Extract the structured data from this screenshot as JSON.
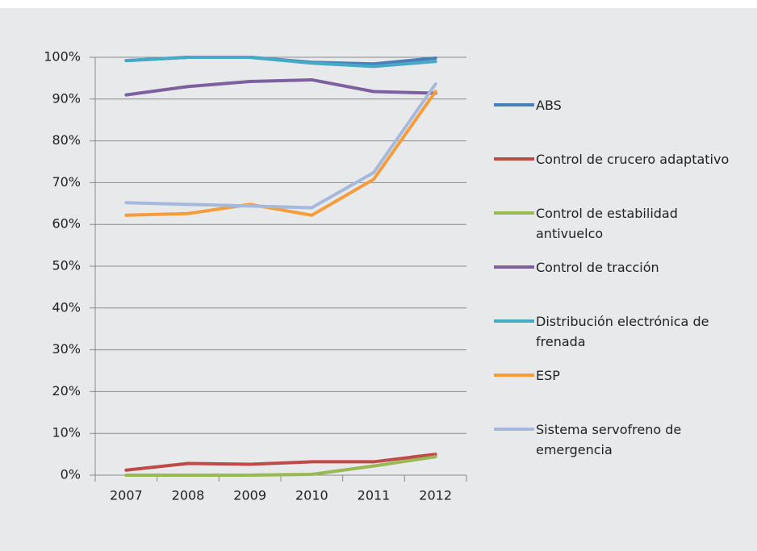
{
  "chart_data": {
    "type": "line",
    "categories": [
      "2007",
      "2008",
      "2009",
      "2010",
      "2011",
      "2012"
    ],
    "series": [
      {
        "name": "ABS",
        "color": "#4a7ebb",
        "values": [
          99.2,
          100,
          100,
          98.8,
          98.4,
          99.8
        ]
      },
      {
        "name": "Control de crucero adaptativo",
        "color": "#be4b48",
        "values": [
          1.2,
          2.8,
          2.6,
          3.2,
          3.2,
          5
        ]
      },
      {
        "name": "Control de estabilidad antivuelco",
        "color": "#98b954",
        "values": [
          0,
          0,
          0,
          0.2,
          2.2,
          4.4
        ]
      },
      {
        "name": "Control de tracción",
        "color": "#7d60a0",
        "values": [
          91,
          93,
          94.2,
          94.6,
          91.8,
          91.4
        ]
      },
      {
        "name": "Distribución electrónica de frenada",
        "color": "#46aac5",
        "values": [
          99.2,
          100,
          100,
          98.6,
          97.8,
          99
        ]
      },
      {
        "name": "ESP",
        "color": "#f59d3d",
        "values": [
          62.2,
          62.6,
          64.8,
          62.2,
          70.8,
          91.8
        ]
      },
      {
        "name": "Sistema servofreno de emergencia",
        "color": "#a5b9dd",
        "values": [
          65.2,
          64.8,
          64.4,
          64,
          72.4,
          93.6
        ]
      }
    ],
    "ylim": [
      0,
      100
    ],
    "yticks": [
      {
        "value": 0,
        "label": "0%"
      },
      {
        "value": 10,
        "label": "10%"
      },
      {
        "value": 20,
        "label": "20%"
      },
      {
        "value": 30,
        "label": "30%"
      },
      {
        "value": 40,
        "label": "40%"
      },
      {
        "value": 50,
        "label": "50%"
      },
      {
        "value": 60,
        "label": "60%"
      },
      {
        "value": 70,
        "label": "70%"
      },
      {
        "value": 80,
        "label": "80%"
      },
      {
        "value": 90,
        "label": "90%"
      },
      {
        "value": 100,
        "label": "100%"
      }
    ],
    "grid": true,
    "legend": "right"
  }
}
